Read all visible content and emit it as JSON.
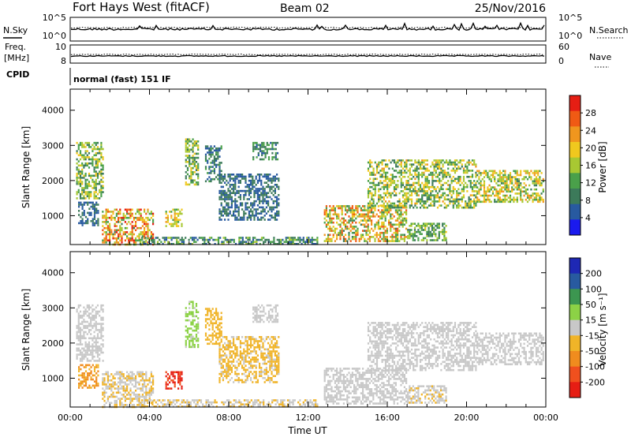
{
  "header": {
    "title": "Fort Hays West (fitACF)",
    "beam": "Beam 02",
    "date": "25/Nov/2016"
  },
  "noise_panel": {
    "left_label": "N.Sky",
    "right_label": "N.Search",
    "left_ticks": [
      "10^5",
      "10^0"
    ],
    "right_ticks": [
      "10^5",
      "10^0"
    ]
  },
  "freq_panel": {
    "left_label_line1": "Freq.",
    "left_label_line2": "[MHz]",
    "right_label": "Nave",
    "left_ticks": [
      "10",
      "8"
    ],
    "right_ticks": [
      "60",
      "0"
    ]
  },
  "cpid": {
    "label": "CPID",
    "value": "normal (fast) 151 IF"
  },
  "colors": {
    "power_scale": [
      "#1a1aee",
      "#285aa0",
      "#3c7a5a",
      "#4aa04a",
      "#a8c832",
      "#f0c81e",
      "#f0961e",
      "#f05a14",
      "#e61e14"
    ],
    "velocity_scale": [
      "#e61e14",
      "#f0501e",
      "#f08c1e",
      "#f0b428",
      "#c8c8c8",
      "#8cd246",
      "#3c9650",
      "#285aa0",
      "#1e28b4"
    ]
  },
  "chart_data": [
    {
      "type": "heatmap",
      "name": "power",
      "xlabel": "",
      "ylabel": "Slant Range [km]",
      "x_ticks": [
        "00:00",
        "04:00",
        "08:00",
        "12:00",
        "16:00",
        "20:00",
        "00:00"
      ],
      "y_ticks": [
        1000,
        2000,
        3000,
        4000
      ],
      "ylim": [
        180,
        4600
      ],
      "xlim_hours": [
        0,
        24
      ],
      "colorbar": {
        "label": "Power [dB]",
        "ticks": [
          4,
          8,
          12,
          16,
          20,
          24,
          28
        ],
        "range": [
          0,
          32
        ]
      },
      "regions": [
        {
          "t": [
            0.3,
            1.7
          ],
          "r": [
            1500,
            3100
          ],
          "v": [
            8,
            20
          ]
        },
        {
          "t": [
            0.4,
            1.4
          ],
          "r": [
            700,
            1400
          ],
          "v": [
            4,
            10
          ]
        },
        {
          "t": [
            1.6,
            4.2
          ],
          "r": [
            200,
            1200
          ],
          "v": [
            10,
            30
          ]
        },
        {
          "t": [
            4.8,
            5.6
          ],
          "r": [
            700,
            1200
          ],
          "v": [
            12,
            24
          ]
        },
        {
          "t": [
            5.8,
            6.5
          ],
          "r": [
            1900,
            3200
          ],
          "v": [
            8,
            20
          ]
        },
        {
          "t": [
            6.8,
            7.6
          ],
          "r": [
            2000,
            3000
          ],
          "v": [
            4,
            12
          ]
        },
        {
          "t": [
            7.5,
            10.5
          ],
          "r": [
            900,
            2200
          ],
          "v": [
            4,
            10
          ]
        },
        {
          "t": [
            9.2,
            10.5
          ],
          "r": [
            2600,
            3100
          ],
          "v": [
            6,
            14
          ]
        },
        {
          "t": [
            3.5,
            12.5
          ],
          "r": [
            200,
            400
          ],
          "v": [
            4,
            16
          ]
        },
        {
          "t": [
            12.8,
            17.0
          ],
          "r": [
            300,
            1300
          ],
          "v": [
            10,
            28
          ]
        },
        {
          "t": [
            17.0,
            19.0
          ],
          "r": [
            300,
            800
          ],
          "v": [
            8,
            18
          ]
        },
        {
          "t": [
            15.0,
            20.5
          ],
          "r": [
            1200,
            2600
          ],
          "v": [
            8,
            22
          ]
        },
        {
          "t": [
            20.5,
            23.9
          ],
          "r": [
            1400,
            2300
          ],
          "v": [
            10,
            24
          ]
        }
      ]
    },
    {
      "type": "heatmap",
      "name": "velocity",
      "xlabel": "Time UT",
      "ylabel": "Slant Range [km]",
      "x_ticks": [
        "00:00",
        "04:00",
        "08:00",
        "12:00",
        "16:00",
        "20:00",
        "00:00"
      ],
      "y_ticks": [
        1000,
        2000,
        3000,
        4000
      ],
      "ylim": [
        180,
        4600
      ],
      "xlim_hours": [
        0,
        24
      ],
      "colorbar": {
        "label": "Velocity [m s⁻¹]",
        "ticks": [
          200,
          100,
          50,
          15,
          -15,
          -50,
          -100,
          -200
        ],
        "range": [
          -250,
          250
        ]
      },
      "regions": [
        {
          "t": [
            0.3,
            1.7
          ],
          "r": [
            1500,
            3100
          ],
          "v": [
            -20,
            10
          ]
        },
        {
          "t": [
            0.4,
            1.4
          ],
          "r": [
            700,
            1400
          ],
          "v": [
            -120,
            -60
          ]
        },
        {
          "t": [
            1.6,
            4.2
          ],
          "r": [
            200,
            1200
          ],
          "v": [
            -60,
            10
          ]
        },
        {
          "t": [
            4.8,
            5.6
          ],
          "r": [
            700,
            1200
          ],
          "v": [
            -250,
            -150
          ]
        },
        {
          "t": [
            5.8,
            6.5
          ],
          "r": [
            1900,
            3200
          ],
          "v": [
            20,
            60
          ]
        },
        {
          "t": [
            6.8,
            7.6
          ],
          "r": [
            2000,
            3000
          ],
          "v": [
            -80,
            -40
          ]
        },
        {
          "t": [
            7.5,
            10.5
          ],
          "r": [
            900,
            2200
          ],
          "v": [
            -60,
            -20
          ]
        },
        {
          "t": [
            9.2,
            10.5
          ],
          "r": [
            2600,
            3100
          ],
          "v": [
            -20,
            10
          ]
        },
        {
          "t": [
            3.5,
            12.5
          ],
          "r": [
            200,
            400
          ],
          "v": [
            -50,
            10
          ]
        },
        {
          "t": [
            12.8,
            17.0
          ],
          "r": [
            300,
            1300
          ],
          "v": [
            -15,
            15
          ]
        },
        {
          "t": [
            17.0,
            19.0
          ],
          "r": [
            300,
            800
          ],
          "v": [
            -40,
            20
          ]
        },
        {
          "t": [
            15.0,
            20.5
          ],
          "r": [
            1200,
            2600
          ],
          "v": [
            -15,
            15
          ]
        },
        {
          "t": [
            20.5,
            23.9
          ],
          "r": [
            1400,
            2300
          ],
          "v": [
            -15,
            15
          ]
        }
      ]
    }
  ]
}
